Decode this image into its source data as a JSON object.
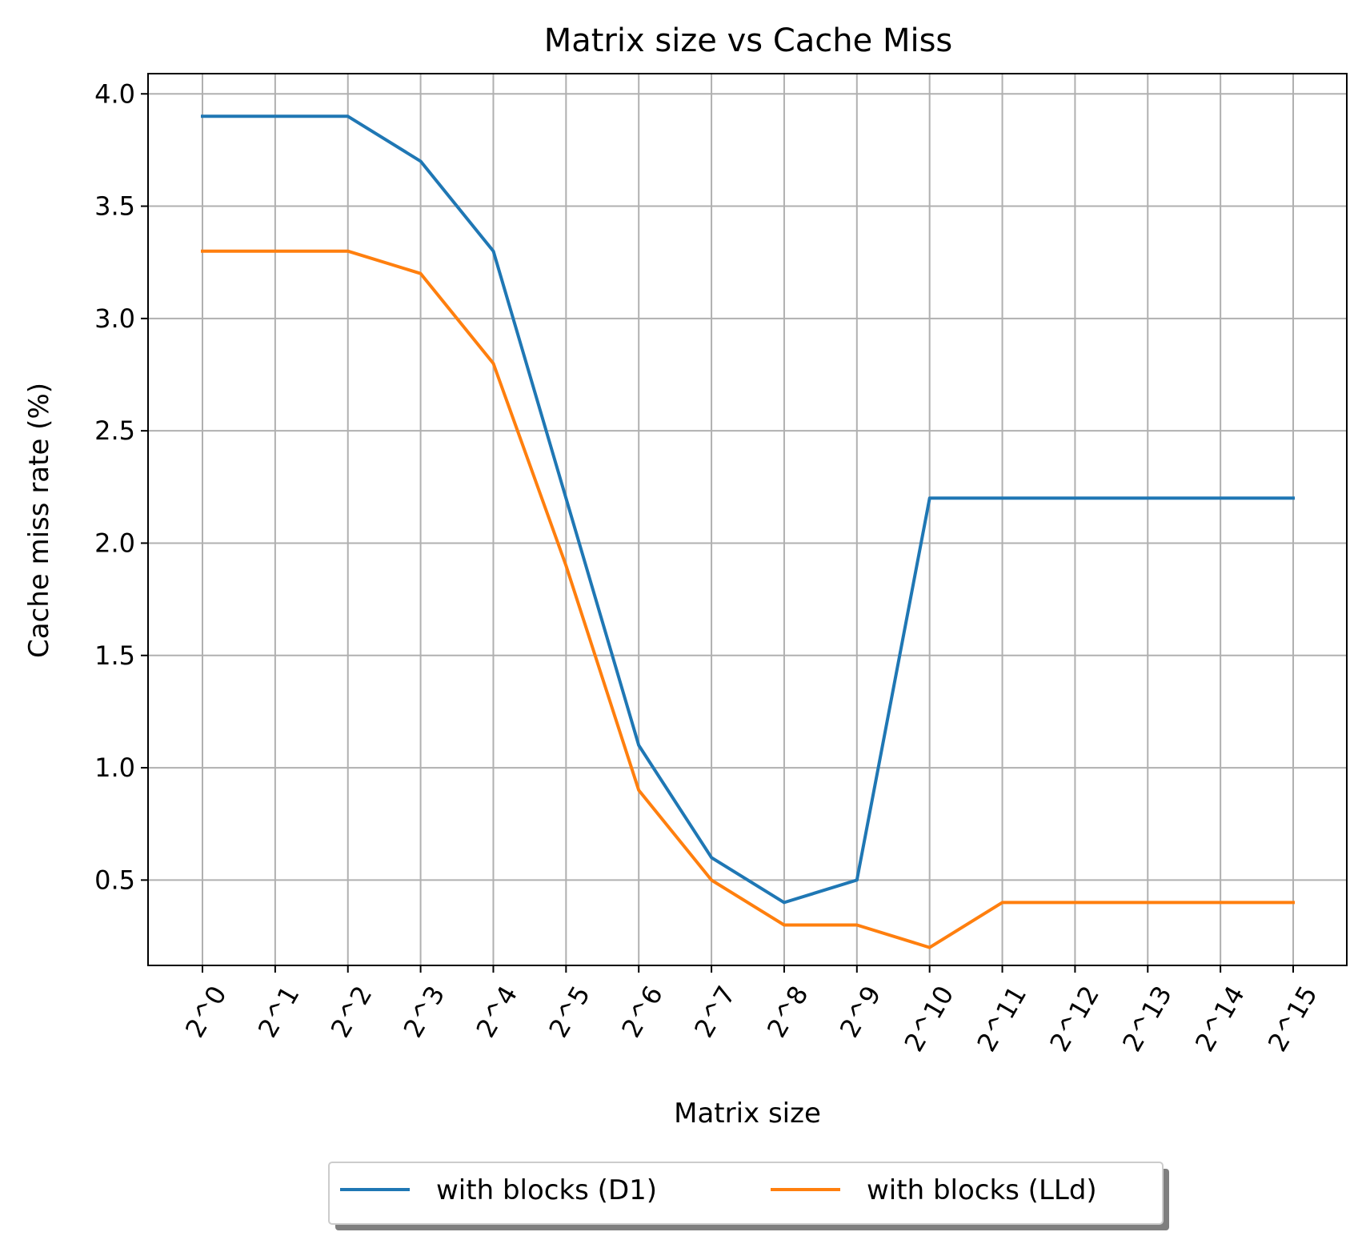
{
  "chart_data": {
    "type": "line",
    "title": "Matrix size vs Cache Miss",
    "xlabel": "Matrix size",
    "ylabel": "Cache miss rate (%)",
    "categories": [
      "2^0",
      "2^1",
      "2^2",
      "2^3",
      "2^4",
      "2^5",
      "2^6",
      "2^7",
      "2^8",
      "2^9",
      "2^10",
      "2^11",
      "2^12",
      "2^13",
      "2^14",
      "2^15"
    ],
    "yticks": [
      "0.5",
      "1.0",
      "1.5",
      "2.0",
      "2.5",
      "3.0",
      "3.5",
      "4.0"
    ],
    "ylim": [
      0.12,
      4.09
    ],
    "grid": true,
    "legend_position": "bottom-center",
    "series": [
      {
        "name": "with blocks (D1)",
        "color": "#1f77b4",
        "values": [
          3.9,
          3.9,
          3.9,
          3.7,
          3.3,
          2.2,
          1.1,
          0.6,
          0.4,
          0.5,
          2.2,
          2.2,
          2.2,
          2.2,
          2.2,
          2.2
        ]
      },
      {
        "name": "with blocks (LLd)",
        "color": "#ff7f0e",
        "values": [
          3.3,
          3.3,
          3.3,
          3.2,
          2.8,
          1.9,
          0.9,
          0.5,
          0.3,
          0.3,
          0.2,
          0.4,
          0.4,
          0.4,
          0.4,
          0.4
        ]
      }
    ]
  }
}
